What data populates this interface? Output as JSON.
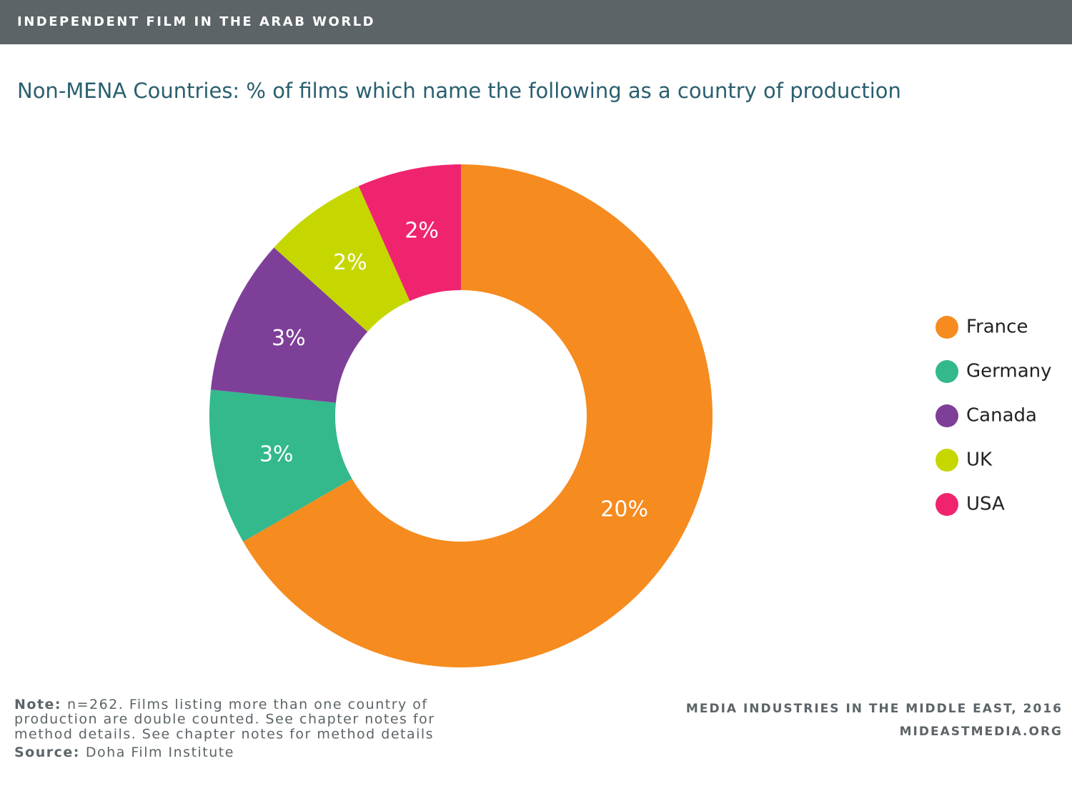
{
  "header": {
    "title": "INDEPENDENT FILM IN THE ARAB WORLD"
  },
  "chart_data": {
    "type": "donut",
    "title": "Non-MENA Countries: % of films which name the following as a country of production",
    "categories": [
      "France",
      "Germany",
      "Canada",
      "UK",
      "USA"
    ],
    "values": [
      20,
      3,
      3,
      2,
      2
    ],
    "value_labels": [
      "20%",
      "3%",
      "3%",
      "2%",
      "2%"
    ],
    "colors": [
      "#f68b1f",
      "#33b98c",
      "#7e3f98",
      "#c6d700",
      "#f0246e"
    ],
    "legend": "right"
  },
  "footer": {
    "note_label": "Note:",
    "note_lines": [
      "n=262. Films listing more than one country of",
      "production are double counted. See chapter notes for",
      "method details. See chapter notes for method details"
    ],
    "source_label": "Source:",
    "source_text": "Doha Film Institute",
    "credit": [
      "MEDIA INDUSTRIES IN THE MIDDLE EAST, 2016",
      "MIDEASTMEDIA.ORG"
    ]
  }
}
